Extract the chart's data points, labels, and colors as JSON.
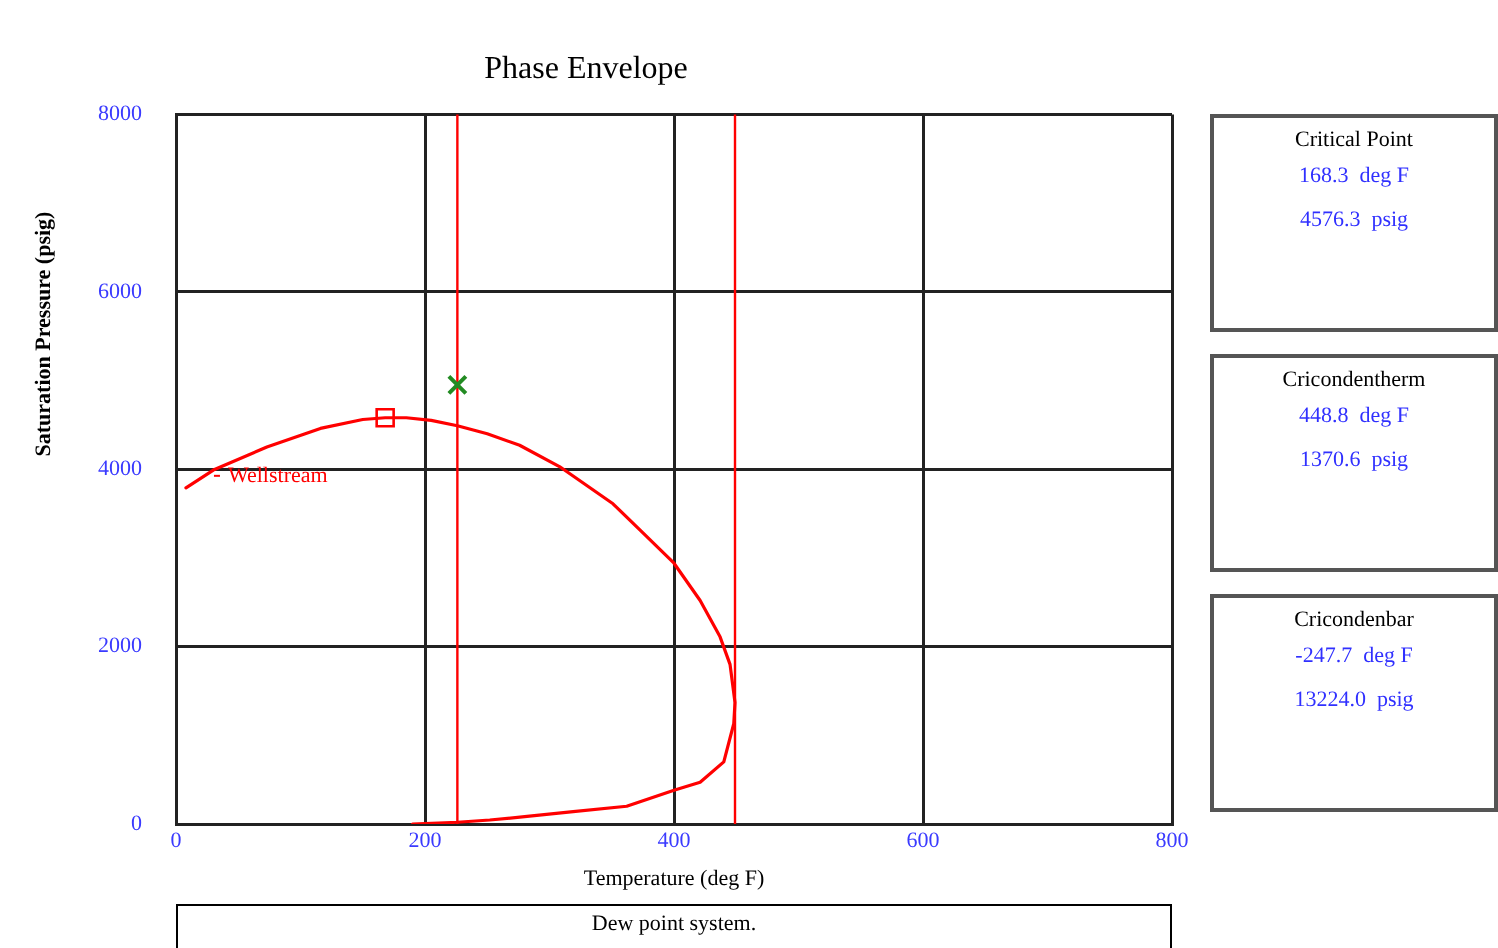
{
  "chart_data": [
    {
      "type": "line",
      "title": "Phase Envelope",
      "xlabel": "Temperature (deg F)",
      "ylabel": "Saturation Pressure (psig)",
      "xlim": [
        0,
        800
      ],
      "xticks": [
        0,
        200,
        400,
        600,
        800
      ],
      "ylim": [
        0,
        8000
      ],
      "yticks": [
        0,
        2000,
        4000,
        6000,
        8000
      ],
      "grid": true,
      "series": [
        {
          "name": "Wellstream",
          "color": "#ff0000",
          "marker": "none",
          "x": [
            8,
            30,
            73,
            116,
            150,
            168,
            185,
            205,
            226,
            250,
            276,
            308,
            351,
            373,
            400,
            421,
            437,
            445,
            449,
            448,
            440,
            421,
            400,
            362,
            319,
            282,
            252,
            226,
            190
          ],
          "values": [
            3790,
            3990,
            4250,
            4460,
            4560,
            4580,
            4580,
            4550,
            4490,
            4400,
            4270,
            4030,
            3610,
            3310,
            2940,
            2520,
            2110,
            1800,
            1370,
            1130,
            700,
            470,
            380,
            200,
            140,
            85,
            45,
            20,
            0
          ]
        },
        {
          "type": "scatter",
          "color": "#ff0000",
          "marker": "square",
          "x": [
            168
          ],
          "values": [
            4580
          ]
        },
        {
          "type": "scatter",
          "color": "#228b22",
          "marker": "cross",
          "x": [
            226
          ],
          "values": [
            4950
          ]
        }
      ],
      "ref_lines": [
        {
          "axis": "x",
          "value": 226,
          "color": "#ff0000"
        },
        {
          "axis": "x",
          "value": 449,
          "color": "#ff0000"
        }
      ],
      "annotations": [
        "Dew point system."
      ]
    },
    {
      "type": "other",
      "title": "Critical Point",
      "annotations": [
        "168.3  deg F",
        "4576.3  psig"
      ]
    },
    {
      "type": "other",
      "title": "Cricondentherm",
      "annotations": [
        "448.8  deg F",
        "1370.6  psig"
      ]
    },
    {
      "type": "other",
      "title": "Cricondenbar",
      "annotations": [
        "-247.7  deg F",
        "13224.0  psig"
      ]
    }
  ]
}
